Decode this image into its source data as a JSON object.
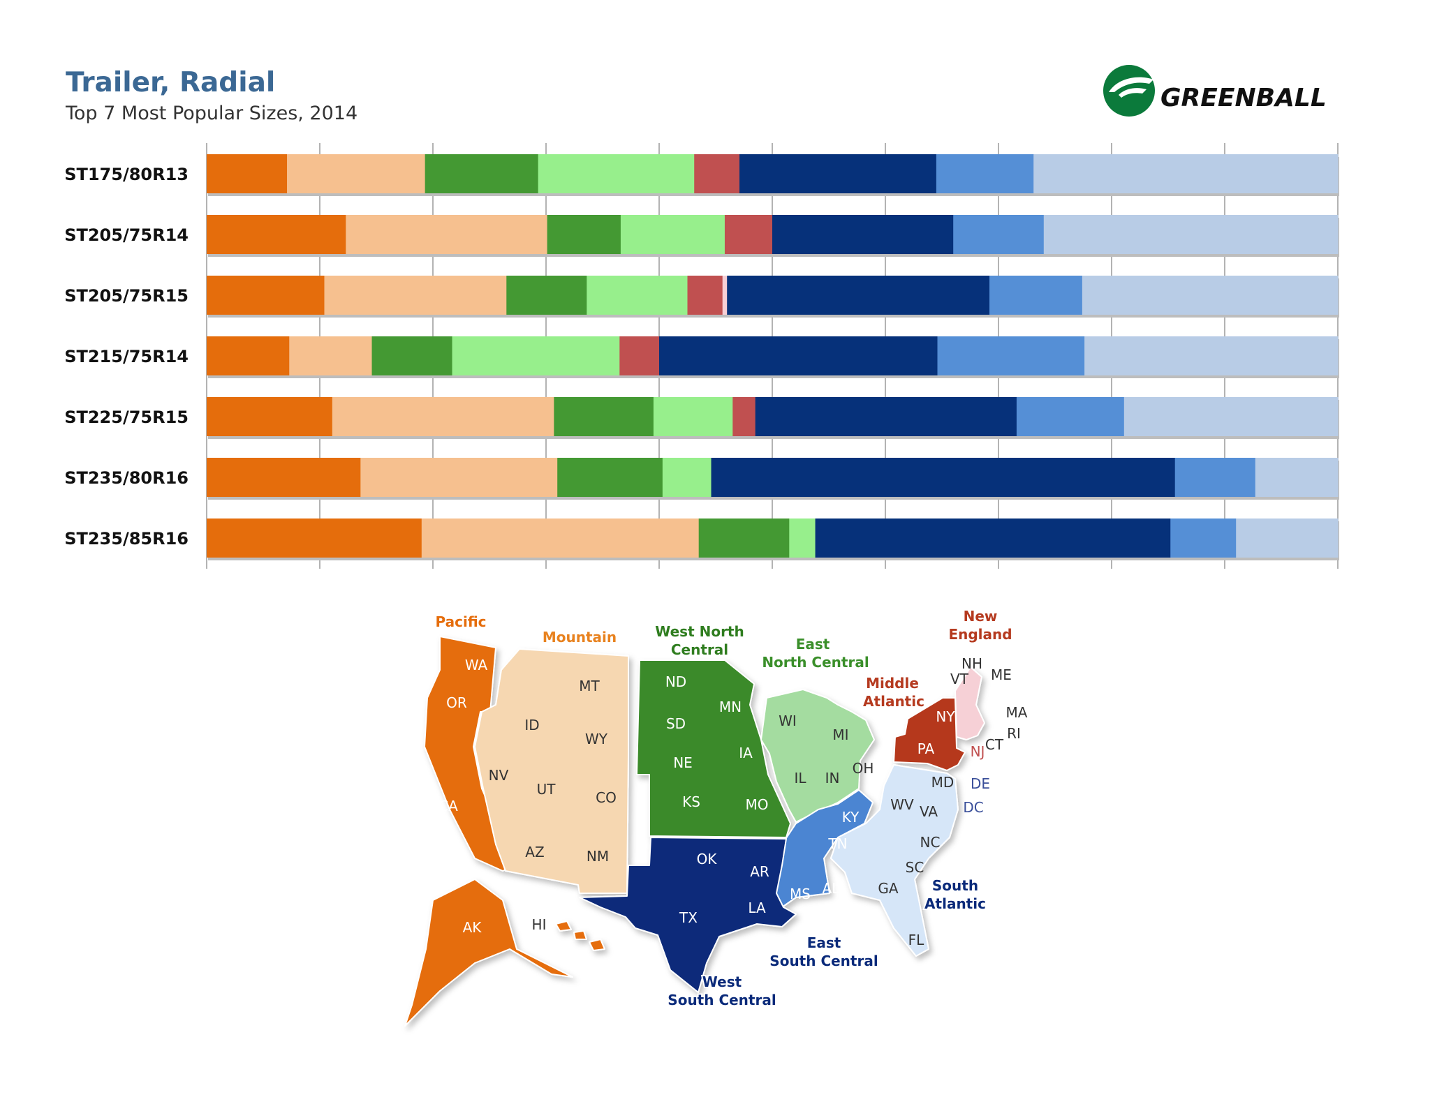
{
  "header": {
    "title": "Trailer, Radial",
    "subtitle": "Top 7 Most Popular Sizes, 2014"
  },
  "logo": {
    "text": "GREENBALL",
    "icon": "greenball-logo-icon",
    "color": "#0b7a3b"
  },
  "regions": [
    {
      "name": "Pacific",
      "color": "#e56d0c"
    },
    {
      "name": "Mountain",
      "color": "#f6c08f"
    },
    {
      "name": "West North Central",
      "color": "#449933"
    },
    {
      "name": "East North Central",
      "color": "#97ef8c"
    },
    {
      "name": "Middle Atlantic",
      "color": "#c05050"
    },
    {
      "name": "New England",
      "color": "#f6d0d6"
    },
    {
      "name": "West South Central",
      "color": "#06317a"
    },
    {
      "name": "East South Central",
      "color": "#558fd6"
    },
    {
      "name": "South Atlantic",
      "color": "#b8cce6"
    }
  ],
  "chart_data": {
    "type": "bar",
    "orientation": "horizontal",
    "stacked": true,
    "normalized": true,
    "title": "Trailer, Radial",
    "subtitle": "Top 7 Most Popular Sizes, 2014",
    "xlim": [
      0,
      100
    ],
    "grid": true,
    "categories": [
      "ST175/80R13",
      "ST205/75R14",
      "ST205/75R15",
      "ST215/75R14",
      "ST225/75R15",
      "ST235/80R16",
      "ST235/85R16"
    ],
    "series": [
      {
        "name": "Pacific",
        "values": [
          7.1,
          12.3,
          10.4,
          7.3,
          11.1,
          13.6,
          19.0
        ]
      },
      {
        "name": "Mountain",
        "values": [
          12.2,
          17.8,
          16.1,
          7.3,
          19.6,
          17.4,
          24.5
        ]
      },
      {
        "name": "West North Central",
        "values": [
          10.0,
          6.5,
          7.1,
          7.1,
          8.8,
          9.3,
          8.0
        ]
      },
      {
        "name": "East North Central",
        "values": [
          13.8,
          9.2,
          8.9,
          14.8,
          7.0,
          4.3,
          2.3
        ]
      },
      {
        "name": "Middle Atlantic",
        "values": [
          4.0,
          4.2,
          3.1,
          3.5,
          2.0,
          0.0,
          0.0
        ]
      },
      {
        "name": "New England",
        "values": [
          0.0,
          0.0,
          0.4,
          0.0,
          0.0,
          0.0,
          0.0
        ]
      },
      {
        "name": "West South Central",
        "values": [
          17.4,
          16.0,
          23.2,
          24.6,
          23.1,
          41.0,
          31.4
        ]
      },
      {
        "name": "East South Central",
        "values": [
          8.6,
          8.0,
          8.2,
          13.0,
          9.5,
          7.1,
          5.8
        ]
      },
      {
        "name": "South Atlantic",
        "values": [
          26.9,
          26.0,
          22.6,
          22.4,
          18.9,
          7.3,
          9.0
        ]
      }
    ]
  },
  "map": {
    "region_labels": [
      {
        "id": "pacific",
        "lines": [
          "Pacific"
        ],
        "color": "#e56d0c"
      },
      {
        "id": "mountain",
        "lines": [
          "Mountain"
        ],
        "color": "#e8821f"
      },
      {
        "id": "west-north-central",
        "lines": [
          "West North",
          "Central"
        ],
        "color": "#2f7d1f"
      },
      {
        "id": "east-north-central",
        "lines": [
          "East",
          "North Central"
        ],
        "color": "#3a8f2a"
      },
      {
        "id": "middle-atlantic",
        "lines": [
          "Middle",
          "Atlantic"
        ],
        "color": "#b53a1f"
      },
      {
        "id": "new-england",
        "lines": [
          "New",
          "England"
        ],
        "color": "#b53a1f"
      },
      {
        "id": "west-south-central",
        "lines": [
          "West",
          "South Central"
        ],
        "color": "#0a2a7a"
      },
      {
        "id": "east-south-central",
        "lines": [
          "East",
          "South Central"
        ],
        "color": "#0a2a7a"
      },
      {
        "id": "south-atlantic",
        "lines": [
          "South",
          "Atlantic"
        ],
        "color": "#0a2a7a"
      }
    ],
    "states": [
      "WA",
      "OR",
      "CA",
      "AK",
      "HI",
      "MT",
      "ID",
      "WY",
      "NV",
      "UT",
      "CO",
      "AZ",
      "NM",
      "ND",
      "SD",
      "NE",
      "KS",
      "MN",
      "IA",
      "MO",
      "WI",
      "MI",
      "IL",
      "IN",
      "OH",
      "NY",
      "PA",
      "NJ",
      "NH",
      "VT",
      "ME",
      "MA",
      "RI",
      "CT",
      "MD",
      "DE",
      "DC",
      "WV",
      "VA",
      "NC",
      "SC",
      "GA",
      "FL",
      "KY",
      "TN",
      "MS",
      "AL",
      "OK",
      "AR",
      "LA",
      "TX"
    ]
  }
}
